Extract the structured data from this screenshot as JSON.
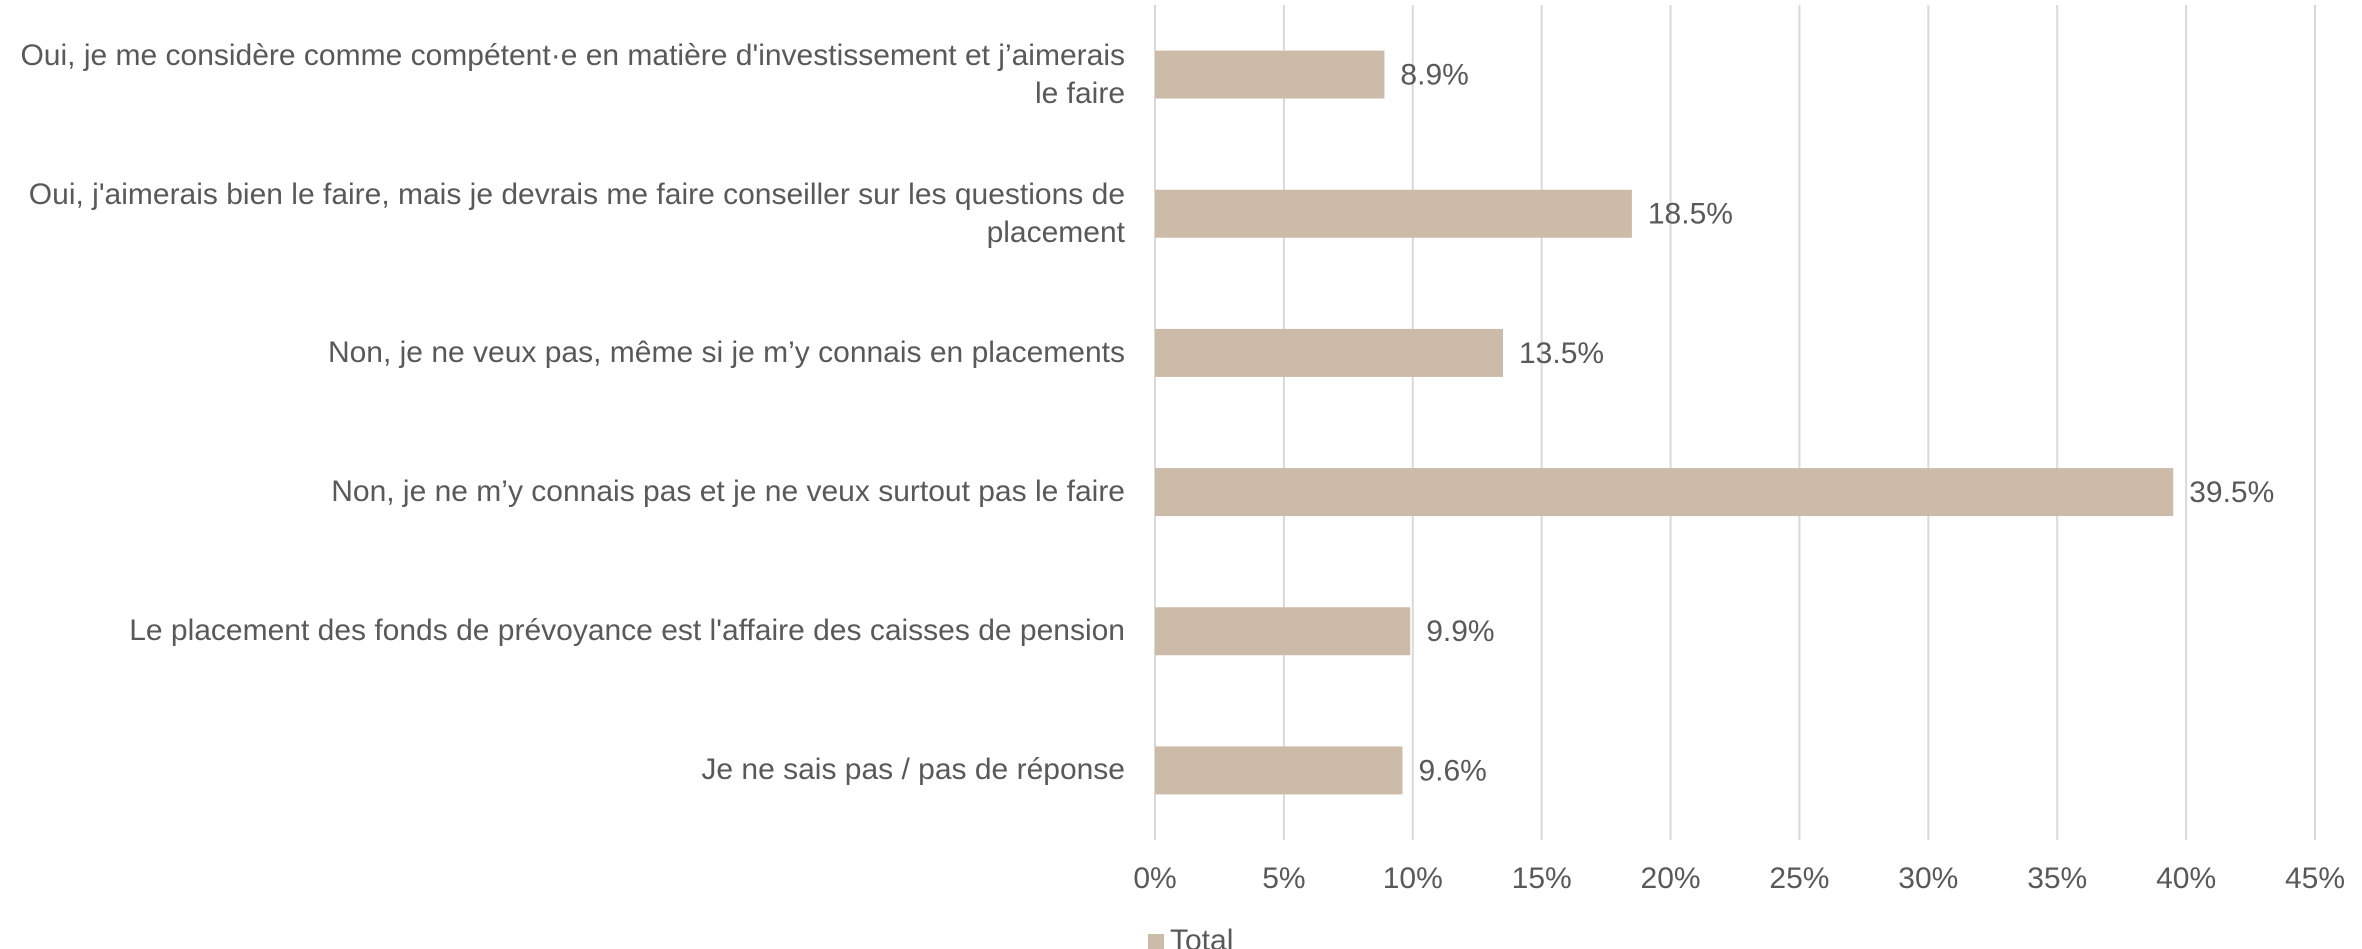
{
  "chart_data": {
    "type": "bar",
    "orientation": "horizontal",
    "categories": [
      "Oui, je me considère comme compétent·e en matière d'investissement et j’aimerais le faire",
      "Oui, j'aimerais bien le faire, mais je devrais me faire conseiller sur les questions de placement",
      "Non, je ne veux pas, même si je m’y connais en placements",
      "Non, je ne m’y connais pas et je ne veux surtout pas le faire",
      "Le placement des fonds de prévoyance est l'affaire des caisses de pension",
      "Je ne sais pas / pas de réponse"
    ],
    "series": [
      {
        "name": "Total",
        "color": "#cdbba9",
        "values": [
          8.9,
          18.5,
          13.5,
          39.5,
          9.9,
          9.6
        ],
        "value_labels": [
          "8.9%",
          "18.5%",
          "13.5%",
          "39.5%",
          "9.9%",
          "9.6%"
        ]
      }
    ],
    "xlim": [
      0,
      45
    ],
    "xticks": [
      {
        "value": 0,
        "label": "0%"
      },
      {
        "value": 5,
        "label": "5%"
      },
      {
        "value": 10,
        "label": "10%"
      },
      {
        "value": 15,
        "label": "15%"
      },
      {
        "value": 20,
        "label": "20%"
      },
      {
        "value": 25,
        "label": "25%"
      },
      {
        "value": 30,
        "label": "30%"
      },
      {
        "value": 35,
        "label": "35%"
      },
      {
        "value": 40,
        "label": "40%"
      },
      {
        "value": 45,
        "label": "45%"
      }
    ],
    "grid": true,
    "legend": "bottom"
  }
}
